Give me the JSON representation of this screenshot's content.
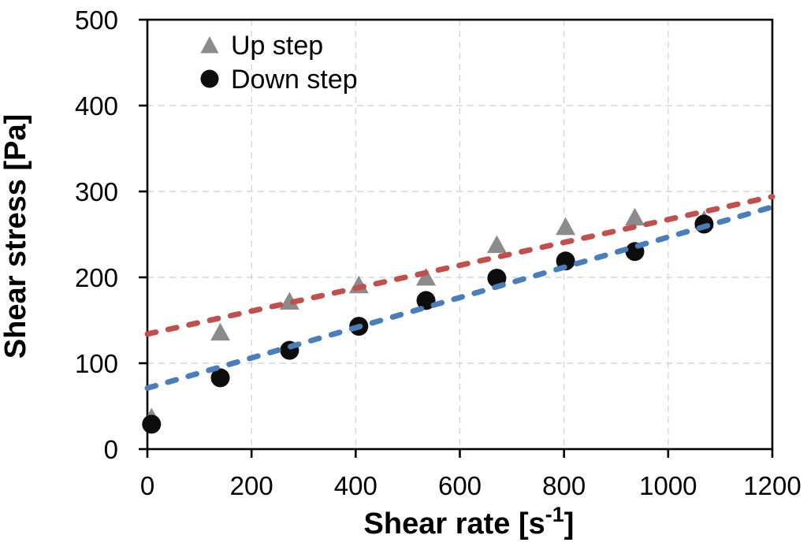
{
  "chart_data": {
    "type": "scatter",
    "title": "",
    "xlabel": "Shear rate [s⁻¹]",
    "xlabel_parts": {
      "pre": "Shear rate [s",
      "sup": "-1",
      "post": "]"
    },
    "ylabel": "Shear stress [Pa]",
    "xlim": [
      0,
      1200
    ],
    "ylim": [
      0,
      500
    ],
    "x_ticks": [
      0,
      200,
      400,
      600,
      800,
      1000,
      1200
    ],
    "y_ticks": [
      0,
      100,
      200,
      300,
      400,
      500
    ],
    "grid": true,
    "legend_position": "top-left-inside",
    "series": [
      {
        "name": "Up step",
        "marker": "triangle",
        "color": "#8b8b8b",
        "x": [
          8,
          140,
          273,
          406,
          535,
          671,
          803,
          936,
          1069
        ],
        "y": [
          37,
          136,
          172,
          191,
          200,
          238,
          259,
          270,
          267
        ]
      },
      {
        "name": "Down step",
        "marker": "circle",
        "color": "#0d0d0d",
        "x": [
          8,
          140,
          273,
          406,
          535,
          671,
          803,
          936,
          1069
        ],
        "y": [
          29,
          83,
          115,
          143,
          173,
          199,
          219,
          230,
          262
        ]
      }
    ],
    "trendlines": [
      {
        "name": "up-step-fit",
        "style": "dashed",
        "color": "#C0504D",
        "x1": 0,
        "y1": 134,
        "x2": 1200,
        "y2": 294
      },
      {
        "name": "down-step-fit",
        "style": "dashed",
        "color": "#4A7EBB",
        "x1": 0,
        "y1": 71,
        "x2": 1200,
        "y2": 282
      }
    ]
  }
}
